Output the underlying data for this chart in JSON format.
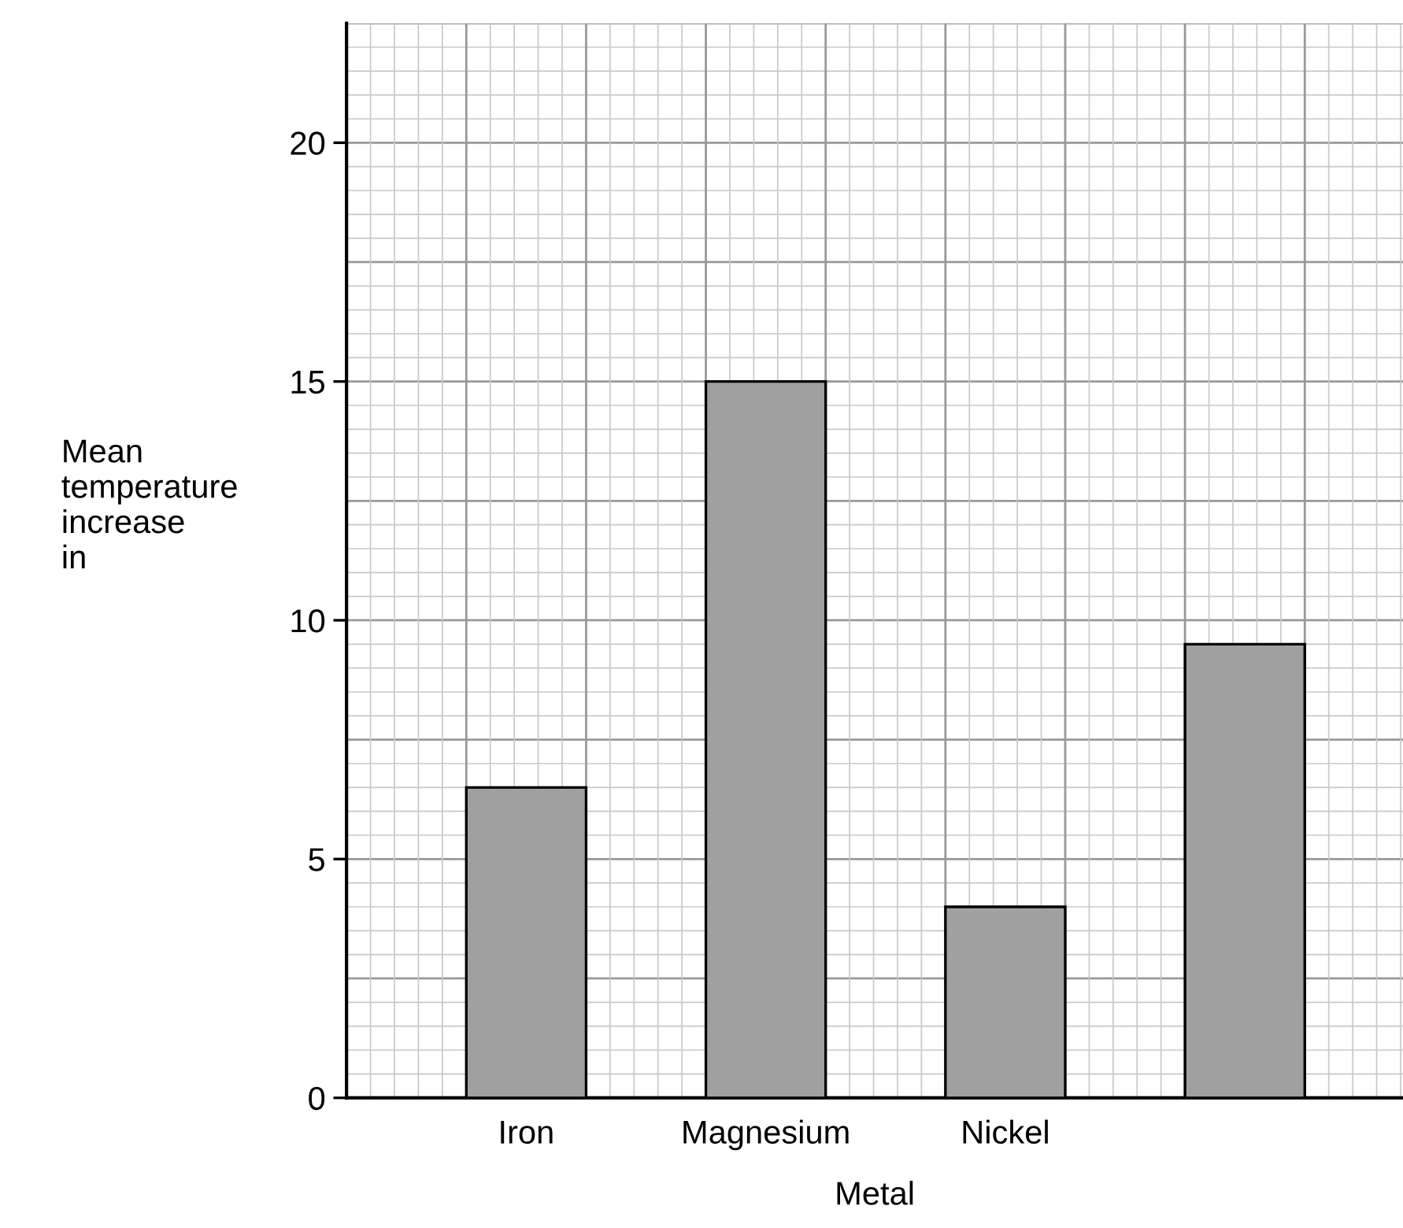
{
  "chart_data": {
    "type": "bar",
    "xlabel": "Metal",
    "ylabel": "Mean\ntemperature\nincrease\nin",
    "categories": [
      "Iron",
      "Magnesium",
      "Nickel",
      null
    ],
    "values": [
      6.5,
      15,
      4,
      9.5
    ],
    "color": "#a0a0a0",
    "ylim": [
      0,
      22.5
    ],
    "yticks": [
      0,
      5,
      10,
      15,
      20
    ],
    "grid": true
  }
}
